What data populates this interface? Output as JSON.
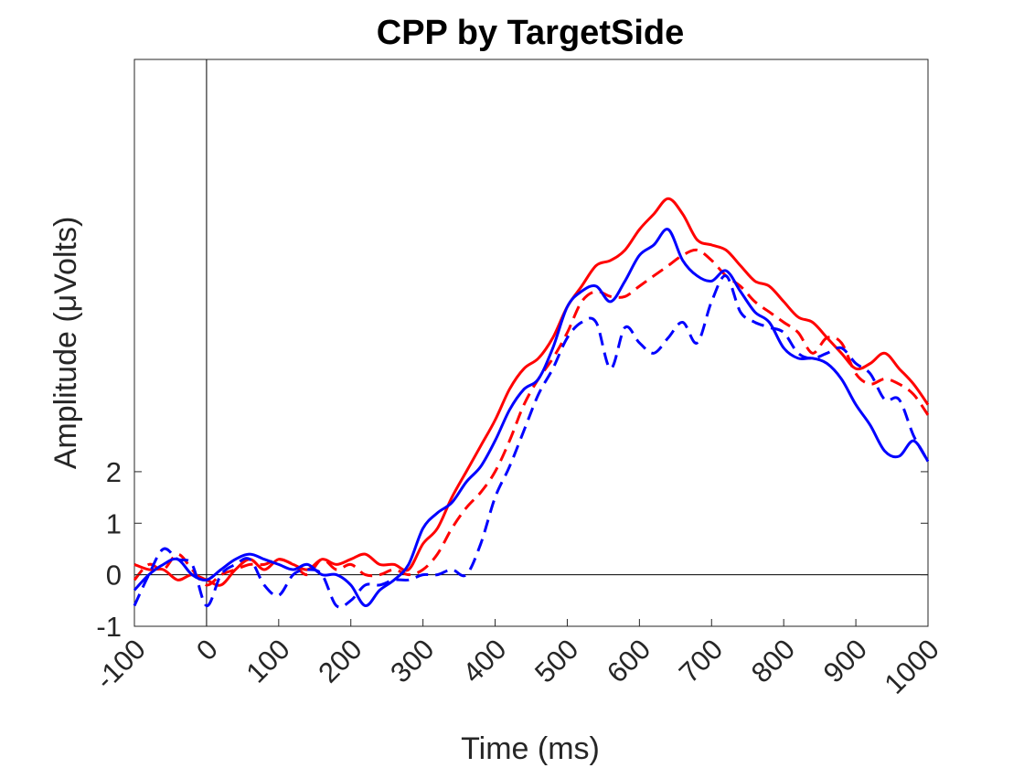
{
  "chart_data": {
    "type": "line",
    "title": "CPP by TargetSide",
    "xlabel": "Time (ms)",
    "ylabel": "Amplitude (μVolts)",
    "xlim": [
      -100,
      1000
    ],
    "ylim": [
      -1,
      10
    ],
    "x_ticks": [
      "-100",
      "0",
      "100",
      "200",
      "300",
      "400",
      "500",
      "600",
      "700",
      "800",
      "900",
      "1000"
    ],
    "y_ticks": [
      "-1",
      "0",
      "1",
      "2"
    ],
    "grid": false,
    "legend": "none",
    "reference_lines": {
      "x": 0,
      "y": 0
    },
    "x": [
      -100,
      -80,
      -60,
      -40,
      -20,
      0,
      20,
      40,
      60,
      80,
      100,
      120,
      140,
      160,
      180,
      200,
      220,
      240,
      260,
      280,
      300,
      320,
      340,
      360,
      380,
      400,
      420,
      440,
      460,
      480,
      500,
      520,
      540,
      560,
      580,
      600,
      620,
      640,
      660,
      680,
      700,
      720,
      740,
      760,
      780,
      800,
      820,
      840,
      860,
      880,
      900,
      920,
      940,
      960,
      980,
      1000
    ],
    "series": [
      {
        "color": "#ff0000",
        "dash": "solid",
        "values": [
          0.2,
          0.1,
          0.1,
          -0.1,
          0.0,
          -0.1,
          -0.2,
          0.1,
          0.3,
          0.1,
          0.3,
          0.2,
          0.1,
          0.3,
          0.2,
          0.3,
          0.4,
          0.2,
          0.2,
          0.1,
          0.6,
          0.9,
          1.5,
          2.0,
          2.5,
          3.0,
          3.6,
          4.0,
          4.2,
          4.6,
          5.2,
          5.6,
          6.0,
          6.1,
          6.3,
          6.7,
          7.0,
          7.3,
          7.0,
          6.5,
          6.4,
          6.3,
          6.0,
          5.7,
          5.6,
          5.3,
          5.0,
          4.9,
          4.6,
          4.3,
          4.0,
          4.1,
          4.3,
          4.0,
          3.7,
          3.3
        ]
      },
      {
        "color": "#ff0000",
        "dash": "dashed",
        "values": [
          -0.1,
          0.2,
          0.1,
          0.4,
          0.1,
          -0.2,
          0.0,
          0.1,
          0.2,
          0.2,
          0.3,
          0.2,
          0.0,
          0.3,
          0.1,
          0.2,
          0.0,
          0.0,
          0.1,
          0.0,
          0.1,
          0.4,
          0.9,
          1.3,
          1.6,
          2.0,
          2.6,
          3.3,
          3.8,
          4.2,
          4.7,
          5.3,
          5.5,
          5.4,
          5.4,
          5.6,
          5.8,
          6.0,
          6.2,
          6.3,
          6.1,
          5.8,
          5.6,
          5.3,
          5.1,
          4.9,
          4.7,
          4.3,
          4.6,
          4.5,
          3.9,
          3.7,
          3.8,
          3.7,
          3.5,
          3.1
        ]
      },
      {
        "color": "#0000ff",
        "dash": "solid",
        "values": [
          -0.3,
          0.0,
          0.2,
          0.3,
          0.0,
          -0.1,
          0.1,
          0.3,
          0.4,
          0.3,
          0.2,
          0.1,
          0.2,
          0.0,
          0.0,
          -0.2,
          -0.6,
          -0.3,
          -0.1,
          0.2,
          0.9,
          1.2,
          1.4,
          1.8,
          2.1,
          2.6,
          3.2,
          3.6,
          3.8,
          4.4,
          5.2,
          5.5,
          5.6,
          5.3,
          5.7,
          6.2,
          6.4,
          6.7,
          6.1,
          5.8,
          5.7,
          5.9,
          5.5,
          5.1,
          4.9,
          4.4,
          4.2,
          4.2,
          4.1,
          3.8,
          3.3,
          2.9,
          2.4,
          2.3,
          2.6,
          2.2
        ]
      },
      {
        "color": "#0000ff",
        "dash": "dashed",
        "values": [
          -0.6,
          0.0,
          0.5,
          0.3,
          0.2,
          -0.6,
          0.0,
          0.2,
          0.3,
          -0.2,
          -0.4,
          0.0,
          0.1,
          0.0,
          -0.6,
          -0.5,
          -0.2,
          -0.2,
          -0.1,
          -0.1,
          0.0,
          0.0,
          0.1,
          0.0,
          0.6,
          1.5,
          2.1,
          2.8,
          3.5,
          4.0,
          4.6,
          4.9,
          4.9,
          4.0,
          4.8,
          4.5,
          4.3,
          4.6,
          4.9,
          4.5,
          5.3,
          5.8,
          5.1,
          4.9,
          4.8,
          4.7,
          4.3,
          4.2,
          4.3,
          4.4,
          4.1,
          3.9,
          3.4,
          3.4,
          2.7,
          2.2
        ]
      }
    ]
  }
}
